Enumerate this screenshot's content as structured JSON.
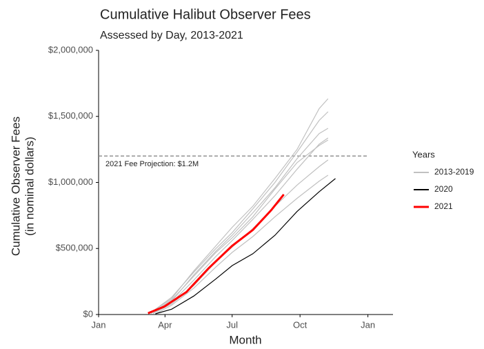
{
  "chart_data": {
    "type": "line",
    "title": "Cumulative Halibut Observer Fees",
    "subtitle": "Assessed by Day, 2013-2021",
    "y_label": [
      "Cumulative Observer Fees",
      "(in nominal dollars)"
    ],
    "x_label": "Month",
    "legend_title": "Years",
    "xlim": [
      1,
      400
    ],
    "xticks": [
      {
        "value": 1,
        "label": "Jan"
      },
      {
        "value": 91,
        "label": "Apr"
      },
      {
        "value": 182,
        "label": "Jul"
      },
      {
        "value": 274,
        "label": "Oct"
      },
      {
        "value": 366,
        "label": "Jan"
      }
    ],
    "ylim": [
      0,
      2000000
    ],
    "yticks": [
      {
        "value": 0,
        "label": "$0"
      },
      {
        "value": 500000,
        "label": "$500,000"
      },
      {
        "value": 1000000,
        "label": "$1,000,000"
      },
      {
        "value": 1500000,
        "label": "$1,500,000"
      },
      {
        "value": 2000000,
        "label": "$2,000,000"
      }
    ],
    "grid": false,
    "legend": "right",
    "reference_line": {
      "value": 1200000,
      "label": "2021 Fee Projection: $1.2M",
      "x_end": 366
    },
    "series": [
      {
        "name": "2013-2019",
        "color": "#c0c0c0",
        "x": [
          70,
          100,
          130,
          160,
          182,
          210,
          240,
          270,
          300,
          312
        ],
        "values": [
          10000,
          120000,
          330000,
          520000,
          660000,
          820000,
          1030000,
          1250000,
          1560000,
          1634000
        ]
      },
      {
        "color": "#c0c0c0",
        "x": [
          72,
          100,
          130,
          160,
          182,
          210,
          240,
          270,
          300,
          312
        ],
        "values": [
          15000,
          130000,
          320000,
          500000,
          620000,
          800000,
          1000000,
          1230000,
          1470000,
          1535000
        ]
      },
      {
        "color": "#c0c0c0",
        "x": [
          75,
          100,
          130,
          160,
          182,
          210,
          240,
          270,
          300,
          312
        ],
        "values": [
          10000,
          100000,
          300000,
          480000,
          600000,
          770000,
          960000,
          1180000,
          1370000,
          1410000
        ]
      },
      {
        "color": "#c0c0c0",
        "x": [
          75,
          100,
          130,
          160,
          182,
          210,
          240,
          270,
          300,
          312
        ],
        "values": [
          10000,
          90000,
          260000,
          440000,
          560000,
          720000,
          900000,
          1100000,
          1290000,
          1337000
        ]
      },
      {
        "color": "#c0c0c0",
        "x": [
          72,
          100,
          130,
          160,
          182,
          210,
          240,
          270,
          300,
          312
        ],
        "values": [
          8000,
          110000,
          290000,
          470000,
          580000,
          740000,
          950000,
          1150000,
          1280000,
          1321000
        ]
      },
      {
        "color": "#c0c0c0",
        "x": [
          75,
          100,
          130,
          160,
          182,
          210,
          240,
          270,
          300,
          312
        ],
        "values": [
          8000,
          80000,
          220000,
          400000,
          510000,
          650000,
          820000,
          980000,
          1120000,
          1170000
        ]
      },
      {
        "color": "#c0c0c0",
        "x": [
          78,
          100,
          130,
          160,
          182,
          210,
          240,
          270,
          300,
          312
        ],
        "values": [
          5000,
          70000,
          200000,
          360000,
          470000,
          590000,
          740000,
          880000,
          1010000,
          1055000
        ]
      },
      {
        "name": "2020",
        "color": "#000000",
        "x": [
          78,
          100,
          130,
          160,
          182,
          210,
          240,
          270,
          300,
          322
        ],
        "values": [
          5000,
          40000,
          140000,
          270000,
          370000,
          460000,
          600000,
          780000,
          930000,
          1029000
        ]
      },
      {
        "name": "2021",
        "color": "#ff0000",
        "width": 3,
        "x": [
          68,
          90,
          120,
          150,
          182,
          210,
          235,
          252
        ],
        "values": [
          10000,
          60000,
          170000,
          350000,
          520000,
          640000,
          790000,
          909000
        ]
      }
    ]
  }
}
